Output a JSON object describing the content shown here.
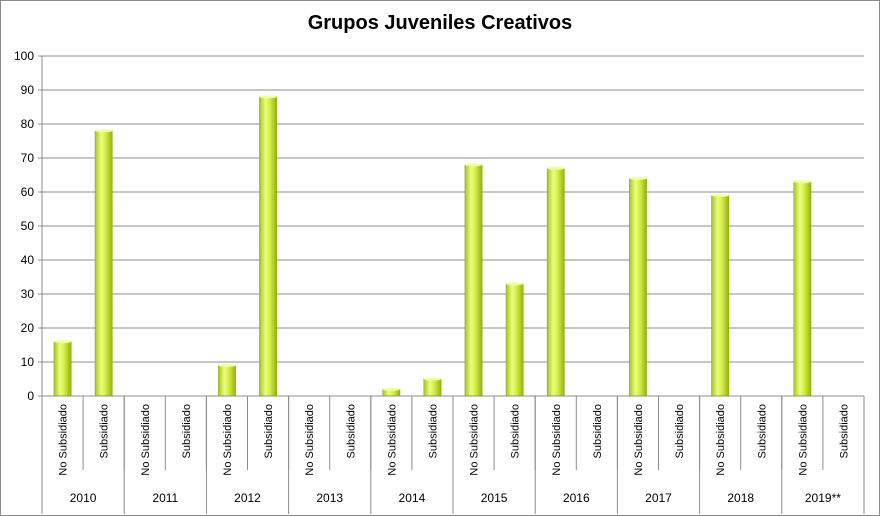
{
  "chart_data": {
    "type": "bar",
    "title": "Grupos Juveniles Creativos",
    "xlabel": "",
    "ylabel": "",
    "ylim": [
      0,
      100
    ],
    "yticks": [
      0,
      10,
      20,
      30,
      40,
      50,
      60,
      70,
      80,
      90,
      100
    ],
    "grid": true,
    "legend": "none",
    "bar_color": "#d4ee4a",
    "groups": [
      {
        "year": "2010",
        "bars": [
          {
            "label": "No Subsidiado",
            "value": 16
          },
          {
            "label": "Subsidiado",
            "value": 78
          }
        ]
      },
      {
        "year": "2011",
        "bars": [
          {
            "label": "No Subsidiado",
            "value": 0
          },
          {
            "label": "Subsidiado",
            "value": 0
          }
        ]
      },
      {
        "year": "2012",
        "bars": [
          {
            "label": "No Subsidiado",
            "value": 9
          },
          {
            "label": "Subsidiado",
            "value": 88
          }
        ]
      },
      {
        "year": "2013",
        "bars": [
          {
            "label": "No Subsidiado",
            "value": 0
          },
          {
            "label": "Subsidiado",
            "value": 0
          }
        ]
      },
      {
        "year": "2014",
        "bars": [
          {
            "label": "No Subsidiado",
            "value": 2
          },
          {
            "label": "Subsidiado",
            "value": 5
          }
        ]
      },
      {
        "year": "2015",
        "bars": [
          {
            "label": "No Subsidiado",
            "value": 68
          },
          {
            "label": "Subsidiado",
            "value": 33
          }
        ]
      },
      {
        "year": "2016",
        "bars": [
          {
            "label": "No Subsidiado",
            "value": 67
          },
          {
            "label": "Subsidiado",
            "value": 0
          }
        ]
      },
      {
        "year": "2017",
        "bars": [
          {
            "label": "No Subsidiado",
            "value": 64
          },
          {
            "label": "Subsidiado",
            "value": 0
          }
        ]
      },
      {
        "year": "2018",
        "bars": [
          {
            "label": "No Subsidiado",
            "value": 59
          },
          {
            "label": "Subsidiado",
            "value": 0
          }
        ]
      },
      {
        "year": "2019**",
        "bars": [
          {
            "label": "No Subsidiado",
            "value": 63
          },
          {
            "label": "Subsidiado",
            "value": 0
          }
        ]
      }
    ]
  }
}
